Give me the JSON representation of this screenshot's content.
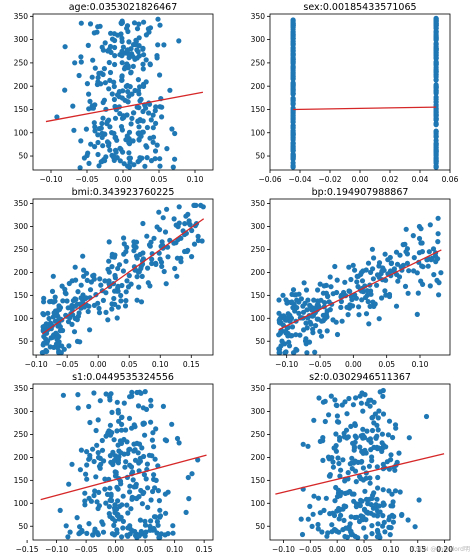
{
  "watermark": "CSDN @shinelord明",
  "chart_data": [
    {
      "type": "scatter",
      "title": "age:0.0353021826467",
      "xlim": [
        -0.125,
        0.125
      ],
      "ylim": [
        20,
        355
      ],
      "xticks": [
        -0.1,
        -0.05,
        0.0,
        0.05,
        0.1
      ],
      "xtick_labels": [
        "−0.10",
        "−0.05",
        "0.00",
        "0.05",
        "0.10"
      ],
      "yticks": [
        50,
        100,
        150,
        200,
        250,
        300,
        350
      ],
      "ytick_labels": [
        "50",
        "100",
        "150",
        "200",
        "250",
        "300",
        "350"
      ],
      "fit_line": {
        "x": [
          -0.107,
          0.111
        ],
        "y": [
          124,
          187
        ]
      },
      "x_range": [
        -0.107,
        0.111
      ],
      "y_range": [
        25,
        346
      ],
      "point_style": "uniform",
      "point_color": "#1f77b4",
      "line_color": "#d62728",
      "grid": false,
      "legend": "none"
    },
    {
      "type": "scatter",
      "title": "sex:0.00185433571065",
      "xlim": [
        -0.06,
        0.06
      ],
      "ylim": [
        20,
        355
      ],
      "xticks": [
        -0.06,
        -0.04,
        -0.02,
        0.0,
        0.02,
        0.04,
        0.06
      ],
      "xtick_labels": [
        "−0.06",
        "−0.04",
        "−0.02",
        "0.00",
        "0.02",
        "0.04",
        "0.06"
      ],
      "yticks": [
        50,
        100,
        150,
        200,
        250,
        300,
        350
      ],
      "ytick_labels": [
        "50",
        "100",
        "150",
        "200",
        "250",
        "300",
        "350"
      ],
      "fit_line": {
        "x": [
          -0.0446,
          0.0507
        ],
        "y": [
          150,
          155
        ]
      },
      "x_values": [
        -0.0446,
        0.0507
      ],
      "y_range": [
        25,
        346
      ],
      "point_style": "two-columns",
      "point_color": "#1f77b4",
      "line_color": "#d62728",
      "grid": false,
      "legend": "none"
    },
    {
      "type": "scatter",
      "title": "bmi:0.343923760225",
      "xlim": [
        -0.105,
        0.185
      ],
      "ylim": [
        20,
        360
      ],
      "xticks": [
        -0.1,
        -0.05,
        0.0,
        0.05,
        0.1,
        0.15
      ],
      "xtick_labels": [
        "−0.10",
        "−0.05",
        "0.00",
        "0.05",
        "0.10",
        "0.15"
      ],
      "yticks": [
        50,
        100,
        150,
        200,
        250,
        300,
        350
      ],
      "ytick_labels": [
        "50",
        "100",
        "150",
        "200",
        "250",
        "300",
        "350"
      ],
      "fit_line": {
        "x": [
          -0.09,
          0.17
        ],
        "y": [
          66,
          317
        ]
      },
      "x_range": [
        -0.09,
        0.17
      ],
      "y_range": [
        25,
        346
      ],
      "point_style": "correlated",
      "point_color": "#1f77b4",
      "line_color": "#d62728",
      "grid": false,
      "legend": "none"
    },
    {
      "type": "scatter",
      "title": "bp:0.194907988867",
      "xlim": [
        -0.125,
        0.145
      ],
      "ylim": [
        20,
        360
      ],
      "xticks": [
        -0.1,
        -0.05,
        0.0,
        0.05,
        0.1
      ],
      "xtick_labels": [
        "−0.10",
        "−0.05",
        "0.00",
        "0.05",
        "0.10"
      ],
      "yticks": [
        50,
        100,
        150,
        200,
        250,
        300,
        350
      ],
      "ytick_labels": [
        "50",
        "100",
        "150",
        "200",
        "250",
        "300",
        "350"
      ],
      "fit_line": {
        "x": [
          -0.112,
          0.132
        ],
        "y": [
          75,
          249
        ]
      },
      "x_range": [
        -0.112,
        0.132
      ],
      "y_range": [
        25,
        346
      ],
      "point_style": "correlated",
      "point_color": "#1f77b4",
      "line_color": "#d62728",
      "grid": false,
      "legend": "none"
    },
    {
      "type": "scatter",
      "title": "s1:0.0449535324556",
      "xlim": [
        -0.14,
        0.165
      ],
      "ylim": [
        20,
        360
      ],
      "xticks": [
        -0.15,
        -0.1,
        -0.05,
        0.0,
        0.05,
        0.1,
        0.15
      ],
      "xtick_labels": [
        "−0.15",
        "−0.10",
        "−0.05",
        "0.00",
        "0.05",
        "0.10",
        "0.15"
      ],
      "yticks": [
        50,
        100,
        150,
        200,
        250,
        300,
        350
      ],
      "ytick_labels": [
        "50",
        "100",
        "150",
        "200",
        "250",
        "300",
        "350"
      ],
      "fit_line": {
        "x": [
          -0.127,
          0.154
        ],
        "y": [
          108,
          205
        ]
      },
      "x_range": [
        -0.127,
        0.154
      ],
      "y_range": [
        25,
        346
      ],
      "point_style": "uniform",
      "point_color": "#1f77b4",
      "line_color": "#d62728",
      "grid": false,
      "legend": "none"
    },
    {
      "type": "scatter",
      "title": "s2:0.0302946511367",
      "xlim": [
        -0.125,
        0.21
      ],
      "ylim": [
        20,
        360
      ],
      "xticks": [
        -0.1,
        -0.05,
        0.0,
        0.05,
        0.1,
        0.15,
        0.2
      ],
      "xtick_labels": [
        "−0.10",
        "−0.05",
        "0.00",
        "0.05",
        "0.10",
        "0.15",
        "0.20"
      ],
      "yticks": [
        50,
        100,
        150,
        200,
        250,
        300,
        350
      ],
      "ytick_labels": [
        "50",
        "100",
        "150",
        "200",
        "250",
        "300",
        "350"
      ],
      "fit_line": {
        "x": [
          -0.115,
          0.199
        ],
        "y": [
          120,
          208
        ]
      },
      "x_range": [
        -0.115,
        0.199
      ],
      "y_range": [
        25,
        346
      ],
      "point_style": "uniform",
      "point_color": "#1f77b4",
      "line_color": "#d62728",
      "grid": false,
      "legend": "none"
    }
  ]
}
